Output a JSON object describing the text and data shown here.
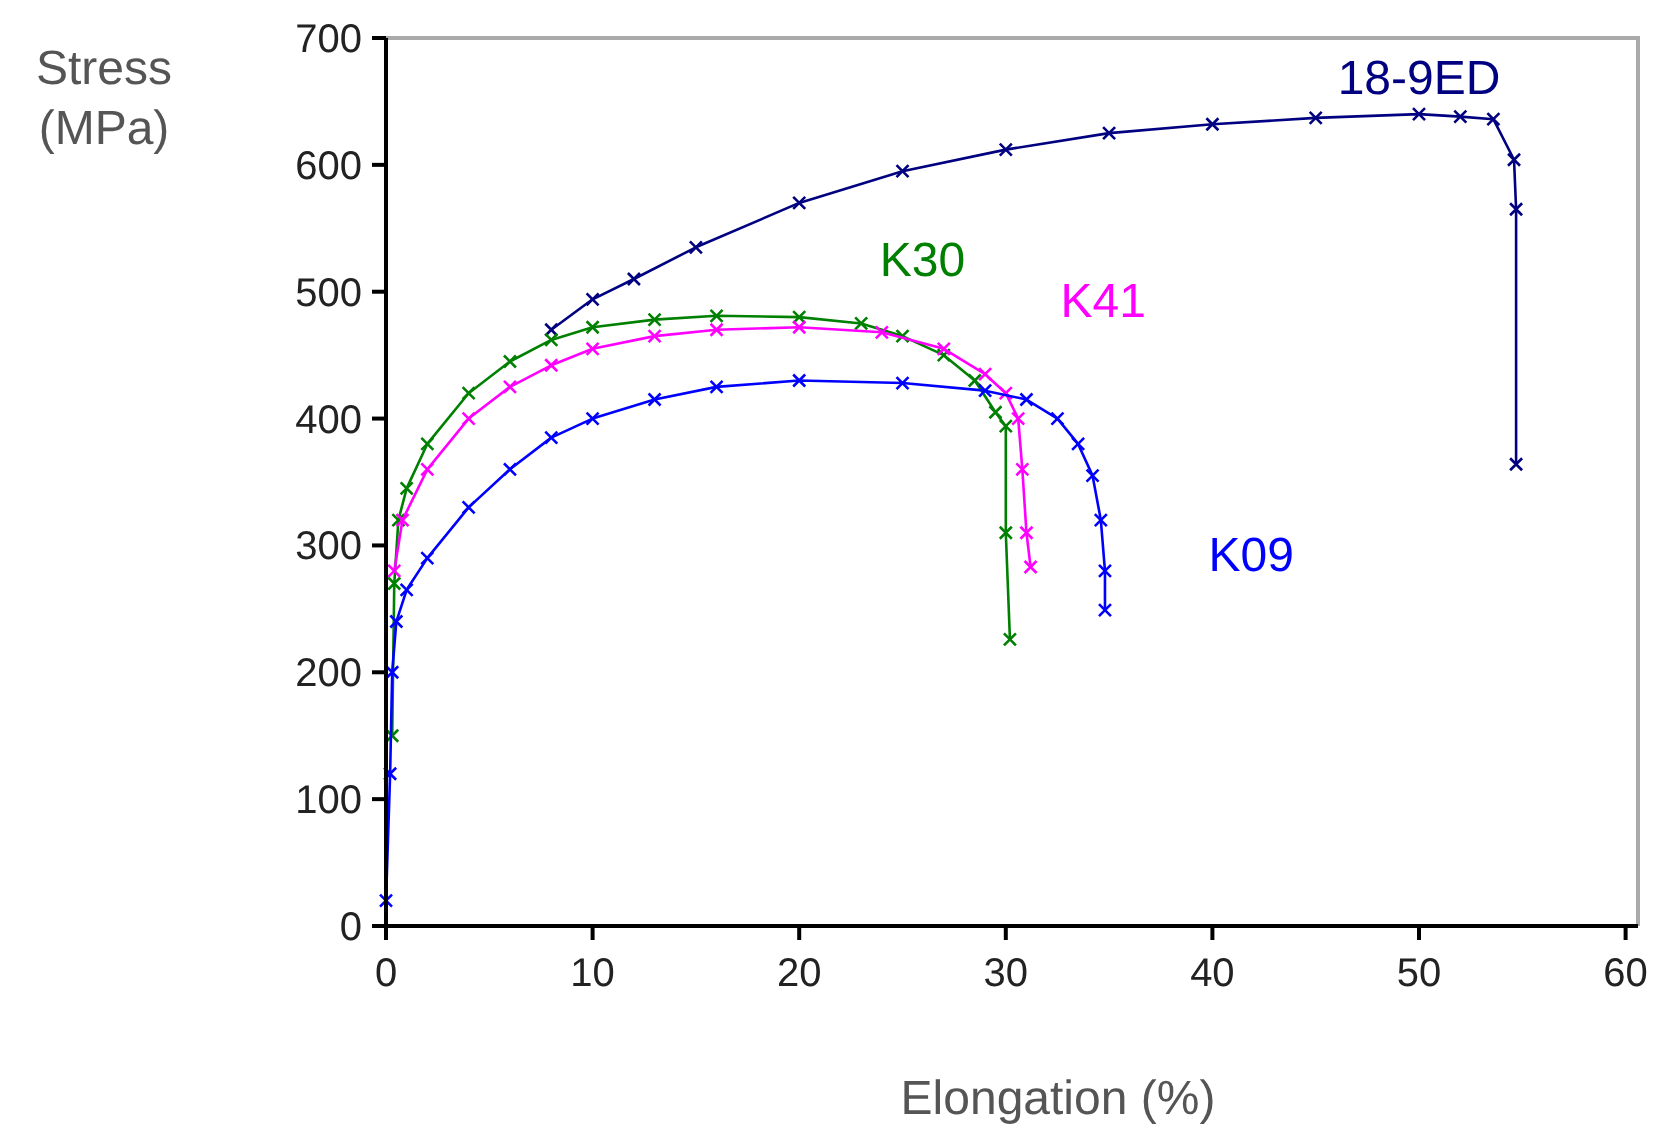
{
  "chart_data": {
    "type": "line",
    "xlabel": "Elongation (%)",
    "ylabel": "Stress (MPa)",
    "xlim": [
      0,
      60.6
    ],
    "ylim": [
      0,
      700
    ],
    "xticks": [
      0,
      10,
      20,
      30,
      40,
      50,
      60
    ],
    "yticks": [
      0,
      100,
      200,
      300,
      400,
      500,
      600,
      700
    ],
    "grid": false,
    "marker": "cross",
    "line_style": "solid",
    "series": [
      {
        "name": "18-9ED",
        "color": "#000080",
        "x": [
          8,
          10,
          12,
          15,
          20,
          25,
          30,
          35,
          40,
          45,
          50,
          52,
          53.6,
          54.6,
          54.7,
          54.7
        ],
        "values": [
          470,
          494,
          510,
          535,
          570,
          595,
          612,
          625,
          632,
          637,
          640,
          638,
          636,
          604,
          565,
          364
        ]
      },
      {
        "name": "K30",
        "color": "#008000",
        "x": [
          0.3,
          0.4,
          0.6,
          1,
          2,
          4,
          6,
          8,
          10,
          13,
          16,
          20,
          23,
          25,
          27,
          28.5,
          29.5,
          30,
          30,
          30.2
        ],
        "values": [
          150,
          270,
          320,
          345,
          380,
          420,
          445,
          462,
          472,
          478,
          481,
          480,
          475,
          465,
          450,
          430,
          405,
          394,
          310,
          226
        ]
      },
      {
        "name": "K41",
        "color": "#ff00ff",
        "x": [
          0.4,
          0.8,
          2,
          4,
          6,
          8,
          10,
          13,
          16,
          20,
          24,
          27,
          29,
          30,
          30.6,
          30.8,
          31,
          31.2
        ],
        "values": [
          280,
          320,
          360,
          400,
          425,
          442,
          455,
          465,
          470,
          472,
          468,
          455,
          435,
          420,
          400,
          360,
          310,
          283
        ]
      },
      {
        "name": "K09",
        "color": "#0000ff",
        "x": [
          0,
          0.2,
          0.3,
          0.5,
          1,
          2,
          4,
          6,
          8,
          10,
          13,
          16,
          20,
          25,
          29,
          31,
          32.5,
          33.5,
          34.2,
          34.6,
          34.8,
          34.8
        ],
        "values": [
          20,
          120,
          200,
          240,
          265,
          290,
          330,
          360,
          385,
          400,
          415,
          425,
          430,
          428,
          422,
          415,
          400,
          380,
          355,
          320,
          280,
          249
        ]
      }
    ]
  }
}
